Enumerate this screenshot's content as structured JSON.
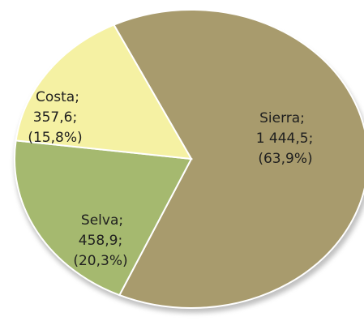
{
  "chart_data": {
    "type": "pie",
    "slices": [
      {
        "name": "Sierra",
        "value": 1444.5,
        "value_label": "1 444,5",
        "percent_label": "(63,9%)",
        "color": "#a89b6d"
      },
      {
        "name": "Selva",
        "value": 458.9,
        "value_label": "458,9",
        "percent_label": "(20,3%)",
        "color": "#a5b96f"
      },
      {
        "name": "Costa",
        "value": 357.6,
        "value_label": "357,6",
        "percent_label": "(15,8%)",
        "color": "#f5f1a3"
      }
    ],
    "labels": {
      "sierra": {
        "name": "Sierra;",
        "value": "1 444,5;",
        "percent": "(63,9%)"
      },
      "selva": {
        "name": "Selva;",
        "value": "458,9;",
        "percent": "(20,3%)"
      },
      "costa": {
        "name": "Costa;",
        "value": "357,6;",
        "percent": "(15,8%)"
      }
    }
  }
}
